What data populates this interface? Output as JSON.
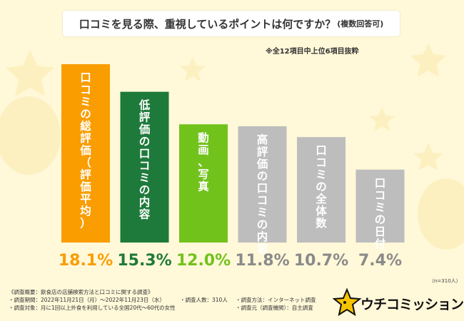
{
  "header": {
    "title": "口コミを見る際、重視しているポイントは何ですか？",
    "title_sub": "(複数回答可)",
    "note": "※全12項目中上位6項目抜粋"
  },
  "chart_data": {
    "type": "bar",
    "title": "口コミを見る際、重視しているポイントは何ですか？(複数回答可)",
    "categories": [
      "口コミの総評価（評価平均）",
      "低評価の口コミの内容",
      "動画、写真",
      "高評価の口コミの内容",
      "口コミの全体数",
      "口コミの日付"
    ],
    "values": [
      18.1,
      15.3,
      12.0,
      11.8,
      10.7,
      7.4
    ],
    "value_labels": [
      "18.1%",
      "15.3%",
      "12.0%",
      "11.8%",
      "10.7%",
      "7.4%"
    ],
    "unit": "%",
    "ylim": [
      0,
      18.1
    ],
    "grid": false,
    "legend": "none",
    "colors": [
      "#f99d00",
      "#1e7a3b",
      "#72c21c",
      "#bdbdbd",
      "#bdbdbd",
      "#bdbdbd"
    ],
    "label_colors": [
      "#f99d00",
      "#1e7a3b",
      "#72c21c",
      "#8a8a8a",
      "#8a8a8a",
      "#8a8a8a"
    ]
  },
  "sample_size": "（n=310人）",
  "survey": {
    "heading": "《調査概要：飲食店の店舗検索方法と口コミに関する調査》",
    "period": "・調査期間：2022年11月21日（月）～2022年11月23日（水）",
    "count": "・調査人数：310人",
    "method": "・調査方法：インターネット調査",
    "target": "・調査対象：月に1回以上外食を利用している全国20代～60代の女性",
    "source": "・調査元（調査機関）：自主調査"
  },
  "brand": {
    "name": "ウチコミッション",
    "colors": {
      "star": "#f5c400",
      "ink": "#111111"
    }
  },
  "colors": {
    "background": "#fff8d9",
    "panel": "#ffffff",
    "text": "#333333"
  }
}
